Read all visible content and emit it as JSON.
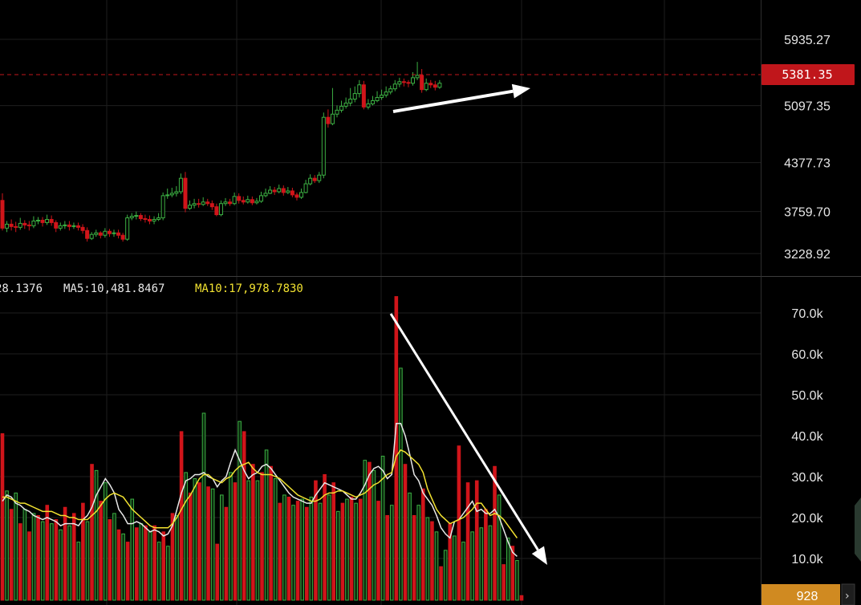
{
  "colors": {
    "background": "#000000",
    "grid": "#1e1e1e",
    "up": "#3cb043",
    "down": "#d0151a",
    "price_marker": "#c0161b",
    "volume_marker": "#d08a21",
    "ma_white": "#e8e8e8",
    "ma_yellow": "#f2e231",
    "arrow": "#ffffff"
  },
  "legend": {
    "ma_first": "28.1376",
    "ma5": "MA5:10,481.8467",
    "ma10": "MA10:17,978.7830"
  },
  "markers": {
    "last_price": "5381.35",
    "last_volume": "928"
  },
  "chart_data": [
    {
      "type": "candlestick",
      "title": "",
      "y_ticks": [
        "5935.27",
        "5097.35",
        "4377.73",
        "3759.70",
        "3228.92"
      ],
      "y_tick_values": [
        5935.27,
        5097.35,
        4377.73,
        3759.7,
        3228.92
      ],
      "current_price": 5381.35,
      "candles": [
        [
          3900,
          3550,
          3990,
          3520
        ],
        [
          3550,
          3600,
          3640,
          3500
        ],
        [
          3600,
          3570,
          3660,
          3520
        ],
        [
          3570,
          3560,
          3630,
          3500
        ],
        [
          3560,
          3610,
          3680,
          3530
        ],
        [
          3610,
          3590,
          3650,
          3540
        ],
        [
          3590,
          3580,
          3640,
          3520
        ],
        [
          3580,
          3640,
          3700,
          3550
        ],
        [
          3640,
          3650,
          3690,
          3600
        ],
        [
          3650,
          3620,
          3690,
          3570
        ],
        [
          3620,
          3660,
          3720,
          3590
        ],
        [
          3660,
          3620,
          3710,
          3580
        ],
        [
          3620,
          3550,
          3650,
          3500
        ],
        [
          3550,
          3580,
          3620,
          3520
        ],
        [
          3580,
          3590,
          3640,
          3540
        ],
        [
          3590,
          3570,
          3640,
          3520
        ],
        [
          3570,
          3580,
          3620,
          3540
        ],
        [
          3580,
          3560,
          3620,
          3520
        ],
        [
          3560,
          3520,
          3600,
          3480
        ],
        [
          3520,
          3420,
          3560,
          3380
        ],
        [
          3420,
          3470,
          3500,
          3400
        ],
        [
          3470,
          3490,
          3530,
          3440
        ],
        [
          3490,
          3460,
          3510,
          3420
        ],
        [
          3460,
          3510,
          3550,
          3430
        ],
        [
          3510,
          3480,
          3540,
          3440
        ],
        [
          3480,
          3490,
          3530,
          3440
        ],
        [
          3490,
          3460,
          3530,
          3420
        ],
        [
          3460,
          3410,
          3490,
          3380
        ],
        [
          3410,
          3680,
          3720,
          3390
        ],
        [
          3680,
          3700,
          3740,
          3650
        ],
        [
          3700,
          3710,
          3760,
          3660
        ],
        [
          3710,
          3670,
          3740,
          3640
        ],
        [
          3670,
          3660,
          3720,
          3620
        ],
        [
          3660,
          3640,
          3710,
          3600
        ],
        [
          3640,
          3660,
          3700,
          3600
        ],
        [
          3660,
          3680,
          3740,
          3640
        ],
        [
          3680,
          3960,
          4000,
          3650
        ],
        [
          3960,
          3970,
          4050,
          3920
        ],
        [
          3970,
          3990,
          4060,
          3940
        ],
        [
          3990,
          4010,
          4080,
          3950
        ],
        [
          4010,
          4180,
          4240,
          3980
        ],
        [
          4180,
          3800,
          4260,
          3750
        ],
        [
          3800,
          3840,
          3900,
          3780
        ],
        [
          3840,
          3860,
          3920,
          3800
        ],
        [
          3860,
          3850,
          3920,
          3810
        ],
        [
          3850,
          3880,
          3940,
          3830
        ],
        [
          3880,
          3860,
          3920,
          3830
        ],
        [
          3860,
          3820,
          3900,
          3780
        ],
        [
          3820,
          3720,
          3860,
          3700
        ],
        [
          3720,
          3860,
          3900,
          3700
        ],
        [
          3860,
          3880,
          3930,
          3830
        ],
        [
          3880,
          3860,
          3920,
          3830
        ],
        [
          3860,
          3950,
          4000,
          3840
        ],
        [
          3950,
          3900,
          3990,
          3860
        ],
        [
          3900,
          3880,
          3950,
          3850
        ],
        [
          3880,
          3910,
          3960,
          3860
        ],
        [
          3910,
          3870,
          3950,
          3840
        ],
        [
          3870,
          3890,
          3930,
          3850
        ],
        [
          3890,
          3960,
          4010,
          3870
        ],
        [
          3960,
          3990,
          4050,
          3940
        ],
        [
          3990,
          4030,
          4080,
          3980
        ],
        [
          4030,
          4010,
          4070,
          3970
        ],
        [
          4010,
          4050,
          4100,
          3990
        ],
        [
          4050,
          4000,
          4090,
          3960
        ],
        [
          4000,
          4020,
          4070,
          3980
        ],
        [
          4020,
          3970,
          4060,
          3940
        ],
        [
          3970,
          3940,
          4000,
          3900
        ],
        [
          3940,
          4000,
          4050,
          3920
        ],
        [
          4000,
          4110,
          4160,
          3990
        ],
        [
          4110,
          4180,
          4230,
          4090
        ],
        [
          4180,
          4150,
          4220,
          4120
        ],
        [
          4150,
          4220,
          4260,
          4120
        ],
        [
          4220,
          4950,
          5010,
          4180
        ],
        [
          4950,
          4870,
          5050,
          4820
        ],
        [
          4870,
          4990,
          5320,
          4850
        ],
        [
          4990,
          5040,
          5100,
          4950
        ],
        [
          5040,
          5090,
          5160,
          5010
        ],
        [
          5090,
          5130,
          5200,
          5060
        ],
        [
          5130,
          5180,
          5320,
          5090
        ],
        [
          5180,
          5250,
          5340,
          5140
        ],
        [
          5250,
          5360,
          5420,
          5200
        ],
        [
          5360,
          5080,
          5410,
          5050
        ],
        [
          5080,
          5120,
          5180,
          5050
        ],
        [
          5120,
          5160,
          5220,
          5100
        ],
        [
          5160,
          5200,
          5280,
          5140
        ],
        [
          5200,
          5230,
          5300,
          5170
        ],
        [
          5230,
          5270,
          5340,
          5200
        ],
        [
          5270,
          5310,
          5350,
          5240
        ],
        [
          5310,
          5370,
          5420,
          5280
        ],
        [
          5370,
          5400,
          5450,
          5330
        ],
        [
          5400,
          5390,
          5440,
          5340
        ],
        [
          5390,
          5380,
          5420,
          5330
        ],
        [
          5380,
          5450,
          5520,
          5350
        ],
        [
          5450,
          5480,
          5650,
          5420
        ],
        [
          5480,
          5300,
          5560,
          5260
        ],
        [
          5300,
          5380,
          5440,
          5280
        ],
        [
          5380,
          5360,
          5420,
          5320
        ],
        [
          5360,
          5330,
          5410,
          5290
        ],
        [
          5330,
          5381.35,
          5420,
          5310
        ]
      ],
      "arrow": {
        "from": [
          0,
          5018
        ],
        "to": [
          1,
          5143
        ]
      }
    },
    {
      "type": "bar",
      "title": "",
      "y_ticks": [
        "70.0k",
        "60.0k",
        "50.0k",
        "40.0k",
        "30.0k",
        "20.0k",
        "10.0k"
      ],
      "y_tick_values": [
        70000,
        60000,
        50000,
        40000,
        30000,
        20000,
        10000
      ],
      "current_volume": 928,
      "series": [
        {
          "values": [
            40500,
            26500,
            22000,
            26000,
            18500,
            22000,
            16500,
            21000,
            20500,
            19000,
            23000,
            18500,
            19500,
            17000,
            22500,
            18000,
            21000,
            14000,
            23500,
            19000,
            33000,
            31500,
            24000,
            28500,
            19500,
            21000,
            17000,
            16000,
            14000,
            24500,
            17500,
            18500,
            18000,
            16500,
            18000,
            14000,
            16500,
            13000,
            21000,
            20500,
            41000,
            31000,
            26000,
            29500,
            28500,
            45500,
            27500,
            27000,
            13500,
            25500,
            22500,
            31000,
            28500,
            43500,
            41000,
            29000,
            33000,
            29000,
            31000,
            36500,
            32500,
            29500,
            23500,
            25500,
            25000,
            23000,
            24000,
            24500,
            22500,
            25000,
            29000,
            23500,
            30500,
            25500,
            28500,
            21500,
            23500,
            24500,
            25000,
            23500,
            24500,
            34000,
            33500,
            31500,
            24000,
            35000,
            20500,
            23000,
            74000,
            56500,
            33000,
            26000,
            20500,
            23000,
            27000,
            20000,
            19000,
            16500,
            8000,
            12000,
            18500,
            15500,
            37500,
            14000,
            28500,
            16500,
            29000,
            17500,
            22000,
            18000,
            32500,
            25500,
            8500,
            15000,
            13000,
            9500,
            928
          ]
        },
        {
          "name": "MA5",
          "values": [
            24000,
            25500,
            25000,
            23500,
            23000,
            22000,
            21500,
            20500,
            20000,
            19500,
            20000,
            19500,
            19000,
            18000,
            18500,
            18500,
            18500,
            18000,
            19500,
            20500,
            22500,
            25500,
            27500,
            29500,
            28000,
            26000,
            22000,
            20500,
            18500,
            18500,
            19000,
            18500,
            17500,
            16500,
            17000,
            16500,
            15500,
            16000,
            18000,
            22000,
            26000,
            29000,
            29500,
            30500,
            30500,
            31000,
            30000,
            29500,
            27500,
            29000,
            30000,
            33500,
            36500,
            34000,
            31500,
            29500,
            30500,
            31000,
            32500,
            33000,
            32000,
            30500,
            29000,
            27500,
            26000,
            25000,
            24500,
            24000,
            23500,
            23500,
            25500,
            27000,
            28500,
            28000,
            27500,
            27000,
            26500,
            25500,
            24500,
            24500,
            26000,
            28000,
            30500,
            32000,
            32500,
            31500,
            29500,
            30500,
            43000,
            43000,
            40000,
            35500,
            30500,
            29000,
            26000,
            24500,
            23000,
            20500,
            17500,
            16000,
            15000,
            19000,
            19500,
            21000,
            22500,
            24000,
            21500,
            22000,
            21000,
            21000,
            22000,
            20000,
            17000,
            14000,
            11500,
            10500
          ]
        },
        {
          "name": "MA10",
          "values": [
            25000,
            25000,
            24500,
            24000,
            23500,
            23500,
            23000,
            22500,
            22000,
            21500,
            21500,
            21500,
            21000,
            20500,
            20500,
            20000,
            20000,
            19500,
            19500,
            19500,
            20500,
            21500,
            23000,
            24500,
            25500,
            26000,
            25500,
            25000,
            23500,
            22000,
            21000,
            20000,
            19000,
            18000,
            17500,
            17500,
            17500,
            17500,
            18500,
            20000,
            22000,
            24000,
            25500,
            27500,
            29500,
            30500,
            30500,
            29500,
            29000,
            28500,
            29500,
            30000,
            31500,
            32500,
            33000,
            33500,
            32000,
            31000,
            30500,
            30500,
            30500,
            30000,
            29500,
            28500,
            27500,
            26500,
            25500,
            25000,
            24500,
            24000,
            24000,
            24500,
            25500,
            26000,
            26000,
            26500,
            26500,
            26000,
            25500,
            25000,
            25500,
            26000,
            27000,
            28000,
            28500,
            29500,
            30500,
            31000,
            35000,
            36500,
            36000,
            35000,
            34000,
            33000,
            31000,
            27000,
            24500,
            22000,
            20500,
            19500,
            18500,
            19000,
            19500,
            20000,
            21000,
            22000,
            23500,
            23500,
            22000,
            20500,
            21000,
            20500,
            19500,
            18000,
            16500,
            15000
          ]
        }
      ],
      "arrow": {
        "from": [
          0,
          70000
        ],
        "to": [
          1,
          10000
        ]
      }
    }
  ]
}
